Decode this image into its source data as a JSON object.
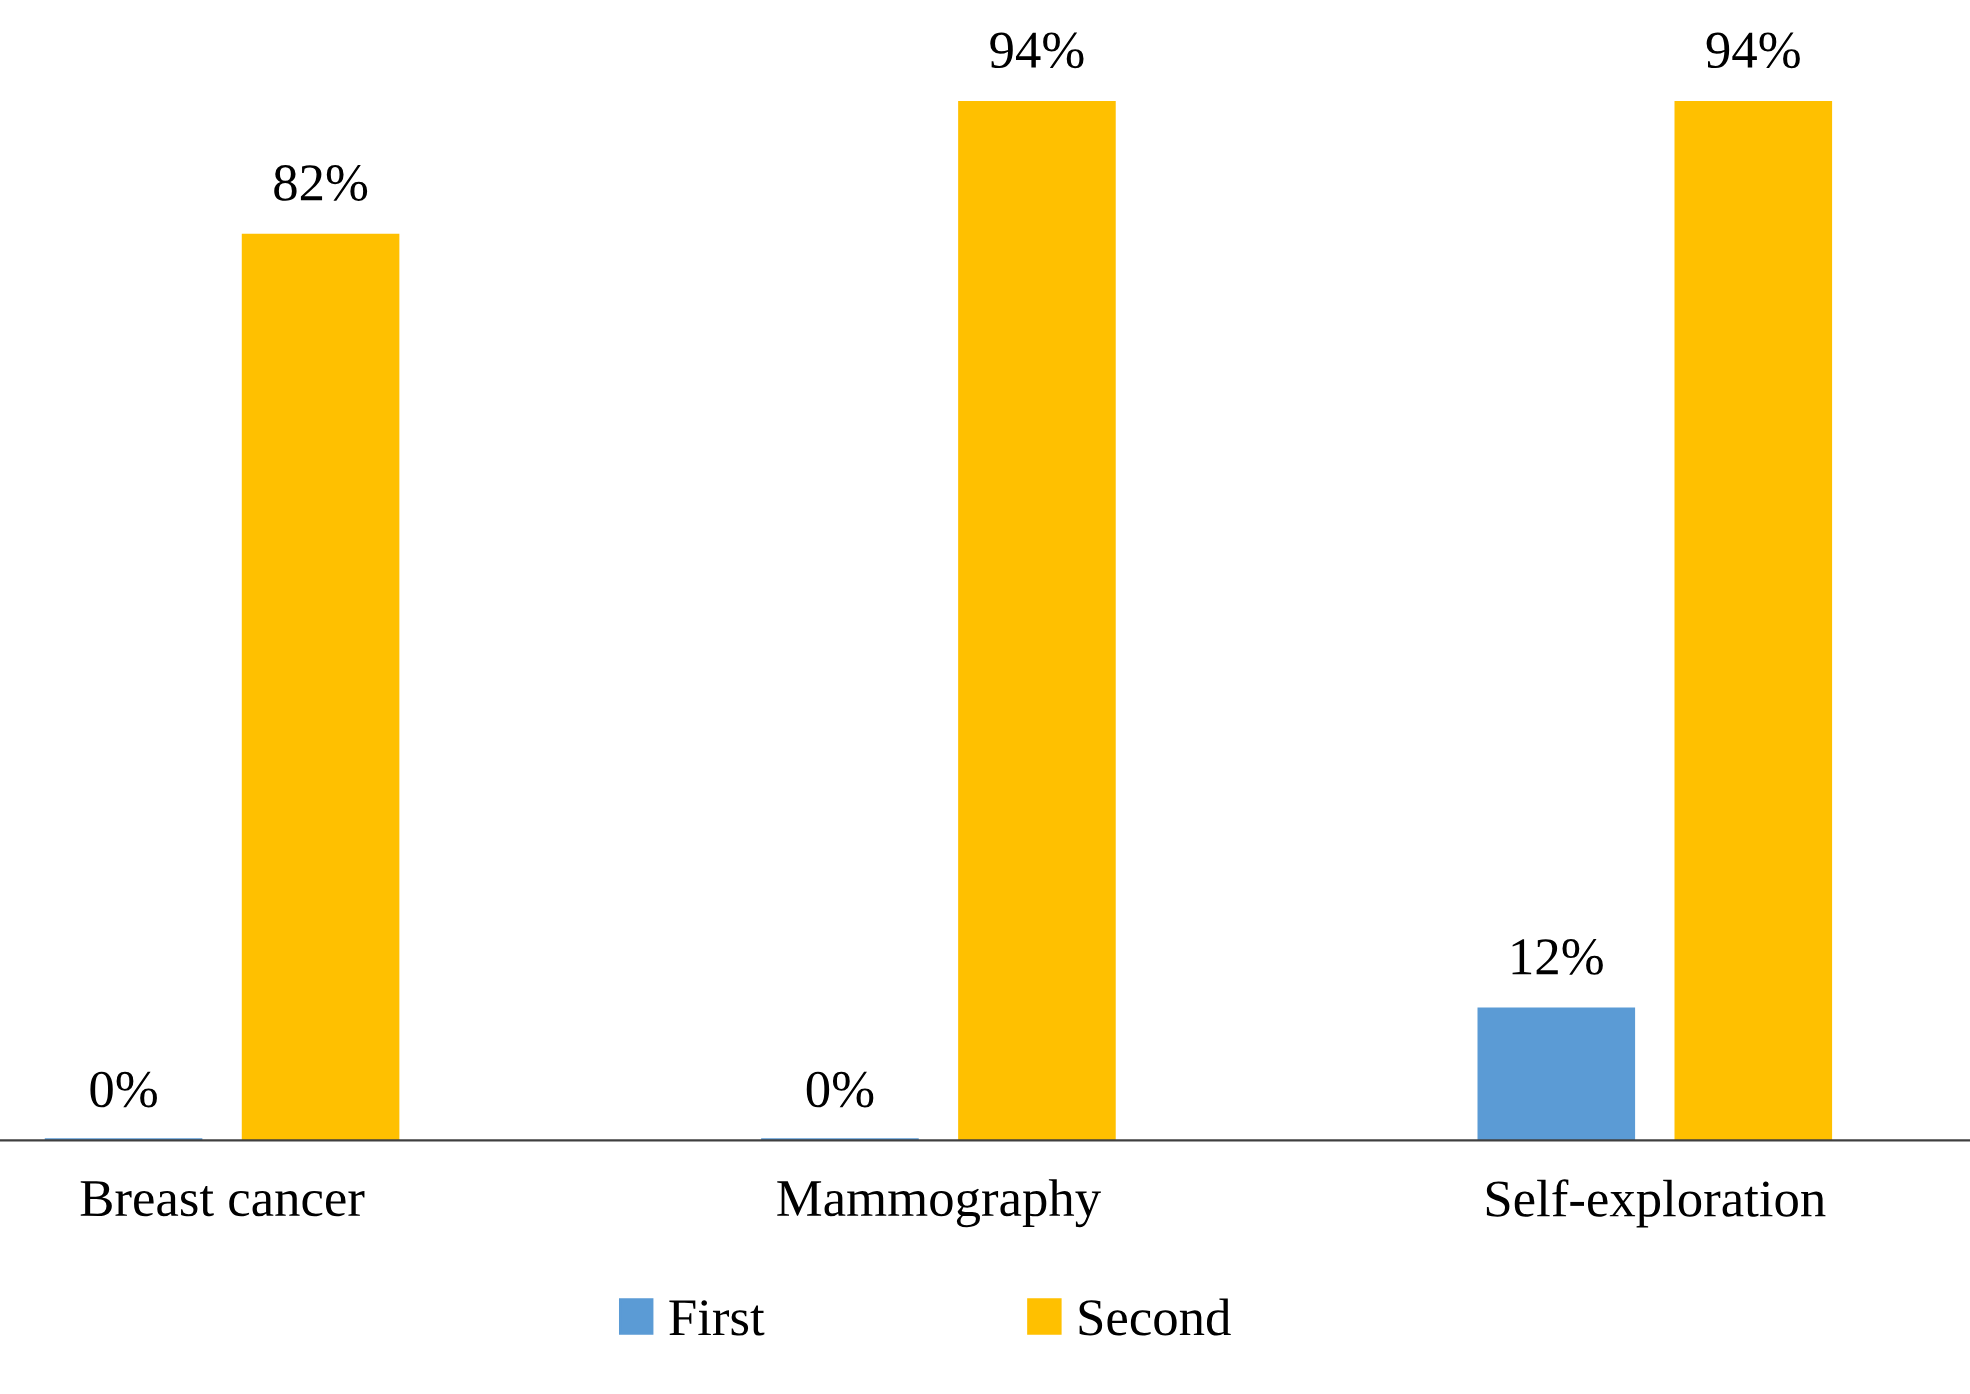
{
  "chart_data": {
    "type": "bar",
    "categories": [
      "Breast cancer",
      "Mammography",
      "Self-exploration"
    ],
    "series": [
      {
        "name": "First",
        "color": "#5b9bd5",
        "values": [
          0,
          0,
          12
        ],
        "value_labels": [
          "0%",
          "0%",
          "12%"
        ]
      },
      {
        "name": "Second",
        "color": "#ffc000",
        "values": [
          82,
          94,
          94
        ],
        "value_labels": [
          "82%",
          "94%",
          "94%"
        ]
      }
    ],
    "tick_labels": "x",
    "grid": false,
    "legend": "bottom"
  }
}
